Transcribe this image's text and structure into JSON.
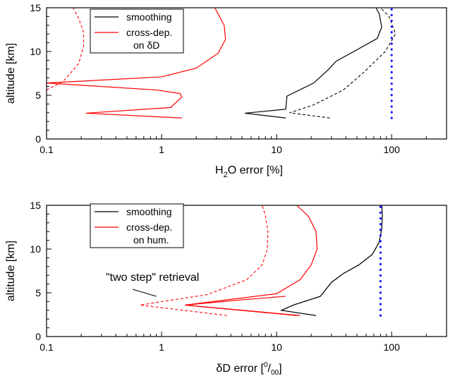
{
  "chart_data": [
    {
      "type": "line",
      "xscale": "log",
      "xlim": [
        0.1,
        300
      ],
      "ylim": [
        0,
        15
      ],
      "xticks": [
        "0.1",
        "1",
        "10",
        "100"
      ],
      "yticks": [
        "0",
        "5",
        "10",
        "15"
      ],
      "xlabel": "H₂O error [%]",
      "xlabel_main": "H",
      "xlabel_sub": "2",
      "xlabel_rest": "O error [%]",
      "ylabel": "altitude [km]",
      "grid": false,
      "legend_position": "top-left",
      "legend": [
        {
          "lines": [
            "smoothing"
          ],
          "color": "#000000"
        },
        {
          "lines": [
            "cross-dep.",
            "on δD"
          ],
          "color": "#ff0000"
        }
      ],
      "series": [
        {
          "name": "smoothing",
          "color": "#000000",
          "style": "solid",
          "x": [
            12,
            5.3,
            12,
            12.3,
            21,
            28,
            33,
            50,
            75,
            82,
            78,
            73
          ],
          "y": [
            2.4,
            2.95,
            3.4,
            4.9,
            6.4,
            7.9,
            8.9,
            10.2,
            11.5,
            12.8,
            14.3,
            15
          ]
        },
        {
          "name": "smoothing (dashed)",
          "color": "#000000",
          "style": "dashed",
          "x": [
            29,
            13,
            21,
            38,
            57,
            88,
            108,
            95,
            80
          ],
          "y": [
            2.4,
            3.0,
            3.9,
            5.6,
            7.6,
            10.0,
            12.0,
            14.0,
            15
          ]
        },
        {
          "name": "cross-dep. on δD",
          "color": "#ff0000",
          "style": "solid",
          "x": [
            1.5,
            0.22,
            1.2,
            1.5,
            1.45,
            0.9,
            0.1,
            1.0,
            2.0,
            3.1,
            3.6,
            3.5,
            2.9
          ],
          "y": [
            2.4,
            2.95,
            3.6,
            4.8,
            5.2,
            5.6,
            6.4,
            7.1,
            8.1,
            9.8,
            11.4,
            13.0,
            15
          ]
        },
        {
          "name": "cross-dep. on δD (dashed)",
          "color": "#ff0000",
          "style": "dashed",
          "x": [
            0.1,
            0.14,
            0.19,
            0.21,
            0.21,
            0.19,
            0.17
          ],
          "y": [
            5.6,
            6.6,
            8.6,
            10.6,
            12.2,
            13.8,
            15
          ]
        },
        {
          "name": "blue dotted",
          "color": "#1a1aff",
          "style": "dotted",
          "x": [
            100,
            100
          ],
          "y": [
            2.4,
            15
          ]
        }
      ]
    },
    {
      "type": "line",
      "xscale": "log",
      "xlim": [
        0.1,
        300
      ],
      "ylim": [
        0,
        15
      ],
      "xticks": [
        "0.1",
        "1",
        "10",
        "100"
      ],
      "yticks": [
        "0",
        "5",
        "10",
        "15"
      ],
      "xlabel": "δD error [⁰/₀₀]",
      "xlabel_main": "δD error [",
      "xlabel_sup": "0",
      "xlabel_slash": "/",
      "xlabel_sub": "00",
      "xlabel_close": "]",
      "ylabel": "altitude [km]",
      "grid": false,
      "legend_position": "top-left",
      "legend": [
        {
          "lines": [
            "smoothing"
          ],
          "color": "#000000"
        },
        {
          "lines": [
            "cross-dep.",
            "on hum."
          ],
          "color": "#ff0000"
        }
      ],
      "annotation": {
        "text": "\"two step\" retrieval",
        "x_end": 0.9,
        "y_end": 4.6
      },
      "series": [
        {
          "name": "smoothing",
          "color": "#000000",
          "style": "solid",
          "x": [
            22,
            11,
            14,
            24,
            30,
            38,
            52,
            68,
            78,
            82,
            83,
            82
          ],
          "y": [
            2.4,
            3.0,
            3.6,
            4.6,
            6.2,
            7.2,
            8.2,
            9.4,
            10.8,
            12.3,
            13.9,
            15
          ]
        },
        {
          "name": "smoothing (dashed)",
          "color": "#000000",
          "style": "dashed",
          "x": [
            11,
            14,
            24,
            30,
            38,
            52,
            68,
            78,
            82,
            83,
            82
          ],
          "y": [
            3.0,
            3.6,
            4.6,
            6.2,
            7.2,
            8.2,
            9.4,
            10.8,
            12.3,
            13.9,
            15
          ]
        },
        {
          "name": "cross-dep. on hum.",
          "color": "#ff0000",
          "style": "solid",
          "x": [
            16,
            1.6,
            10,
            16,
            20,
            22.5,
            22,
            19,
            15
          ],
          "y": [
            2.4,
            3.6,
            4.9,
            6.5,
            8.2,
            10.0,
            12.0,
            13.7,
            15
          ]
        },
        {
          "name": "cross-dep. on hum. (solid lower)",
          "color": "#ff0000",
          "style": "solid",
          "x": [
            15,
            1.6,
            5,
            12
          ],
          "y": [
            2.4,
            3.6,
            4.2,
            4.6
          ]
        },
        {
          "name": "cross-dep. on hum. (dashed)",
          "color": "#ff0000",
          "style": "dashed",
          "x": [
            3.7,
            0.65,
            2.5,
            5.5,
            7.5,
            8.3,
            8.4,
            8.0,
            7.5
          ],
          "y": [
            2.4,
            3.6,
            4.8,
            6.5,
            8.2,
            10.0,
            12.0,
            13.8,
            15
          ]
        },
        {
          "name": "blue dotted",
          "color": "#1a1aff",
          "style": "dotted",
          "x": [
            80,
            80
          ],
          "y": [
            2.4,
            15
          ]
        }
      ]
    }
  ]
}
